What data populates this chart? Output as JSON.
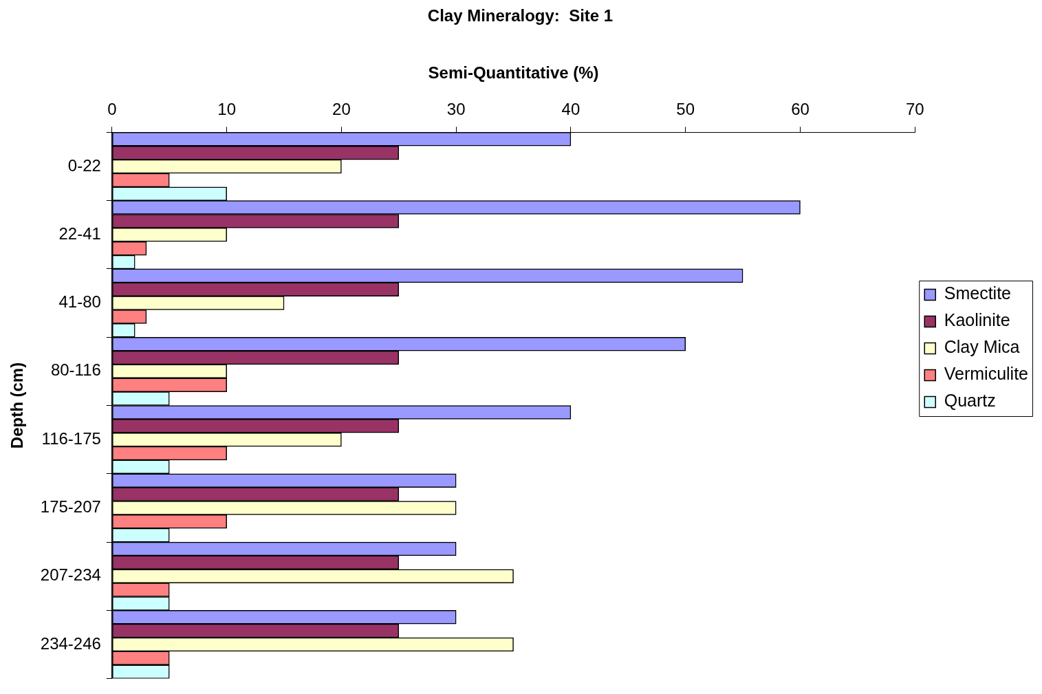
{
  "chart_data": {
    "type": "bar",
    "orientation": "horizontal",
    "title": "Clay Mineralogy:  Site 1",
    "xlabel": "Semi-Quantitative (%)",
    "ylabel": "Depth (cm)",
    "categories": [
      "0-22",
      "22-41",
      "41-80",
      "80-116",
      "116-175",
      "175-207",
      "207-234",
      "234-246"
    ],
    "series": [
      {
        "name": "Smectite",
        "color": "#9999ff",
        "values": [
          40,
          60,
          55,
          50,
          40,
          30,
          30,
          30
        ]
      },
      {
        "name": "Kaolinite",
        "color": "#993366",
        "values": [
          25,
          25,
          25,
          25,
          25,
          25,
          25,
          25
        ]
      },
      {
        "name": "Clay Mica",
        "color": "#ffffcc",
        "values": [
          20,
          10,
          15,
          10,
          20,
          30,
          35,
          35
        ]
      },
      {
        "name": "Vermiculite",
        "color": "#ff8080",
        "values": [
          5,
          3,
          3,
          10,
          10,
          10,
          5,
          5
        ]
      },
      {
        "name": "Quartz",
        "color": "#ccffff",
        "values": [
          10,
          2,
          2,
          5,
          5,
          5,
          5,
          5
        ]
      }
    ],
    "xlim": [
      0,
      70
    ],
    "xticks": [
      0,
      10,
      20,
      30,
      40,
      50,
      60,
      70
    ],
    "grid": false,
    "legend": "right"
  }
}
